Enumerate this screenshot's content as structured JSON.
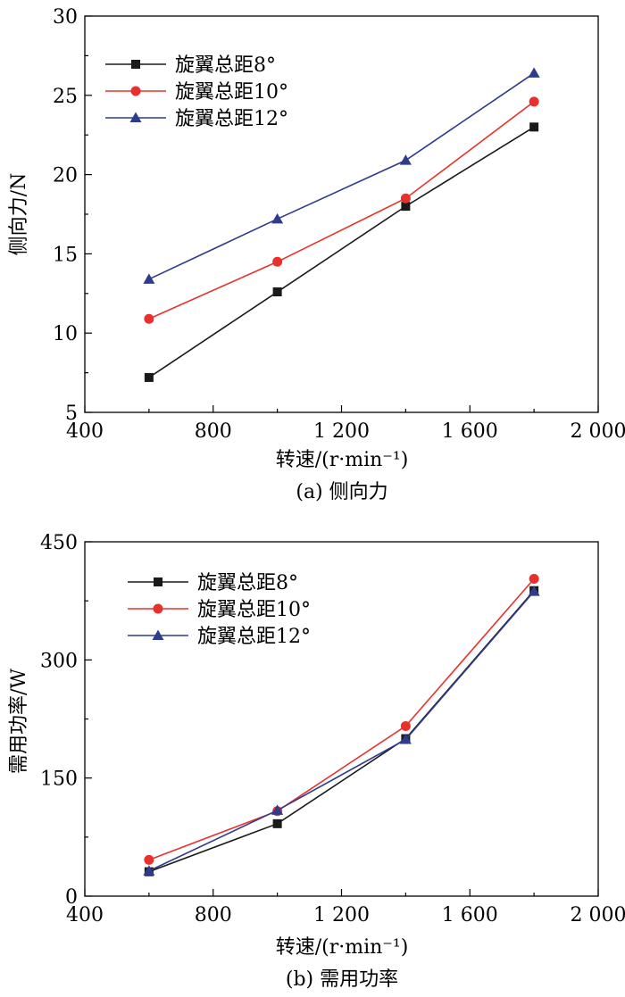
{
  "chart_data": [
    {
      "type": "line",
      "title": "(a) 侧向力",
      "xlabel": "转速/(r·min⁻¹)",
      "ylabel": "侧向力/N",
      "xlim": [
        400,
        2000
      ],
      "ylim": [
        5,
        30
      ],
      "xticks": [
        400,
        800,
        1200,
        1600,
        2000
      ],
      "xtick_labels": [
        "400",
        "800",
        "1 200",
        "1 600",
        "2 000"
      ],
      "yticks": [
        5,
        10,
        15,
        20,
        25,
        30
      ],
      "ytick_labels": [
        "5",
        "10",
        "15",
        "20",
        "25",
        "30"
      ],
      "legend_position": "top-left",
      "x": [
        600,
        1000,
        1400,
        1800
      ],
      "series": [
        {
          "name": "旋翼总距8°",
          "color": "#1a1a1a",
          "marker": "square",
          "values": [
            7.2,
            12.6,
            18.0,
            23.0
          ]
        },
        {
          "name": "旋翼总距10°",
          "color": "#e8312d",
          "marker": "circle",
          "values": [
            10.9,
            14.5,
            18.5,
            24.6
          ]
        },
        {
          "name": "旋翼总距12°",
          "color": "#2f3b8c",
          "marker": "triangle",
          "values": [
            13.4,
            17.2,
            20.9,
            26.4
          ]
        }
      ]
    },
    {
      "type": "line",
      "title": "(b) 需用功率",
      "xlabel": "转速/(r·min⁻¹)",
      "ylabel": "需用功率/W",
      "xlim": [
        400,
        2000
      ],
      "ylim": [
        0,
        450
      ],
      "xticks": [
        400,
        800,
        1200,
        1600,
        2000
      ],
      "xtick_labels": [
        "400",
        "800",
        "1 200",
        "1 600",
        "2 000"
      ],
      "yticks": [
        0,
        150,
        300,
        450
      ],
      "ytick_labels": [
        "0",
        "150",
        "300",
        "450"
      ],
      "legend_position": "top-left",
      "x": [
        600,
        1000,
        1400,
        1800
      ],
      "series": [
        {
          "name": "旋翼总距8°",
          "color": "#1a1a1a",
          "marker": "square",
          "values": [
            31,
            92,
            200,
            388
          ]
        },
        {
          "name": "旋翼总距10°",
          "color": "#e8312d",
          "marker": "circle",
          "values": [
            46,
            108,
            216,
            403
          ]
        },
        {
          "name": "旋翼总距12°",
          "color": "#2f3b8c",
          "marker": "triangle",
          "values": [
            32,
            109,
            199,
            387
          ]
        }
      ]
    }
  ]
}
